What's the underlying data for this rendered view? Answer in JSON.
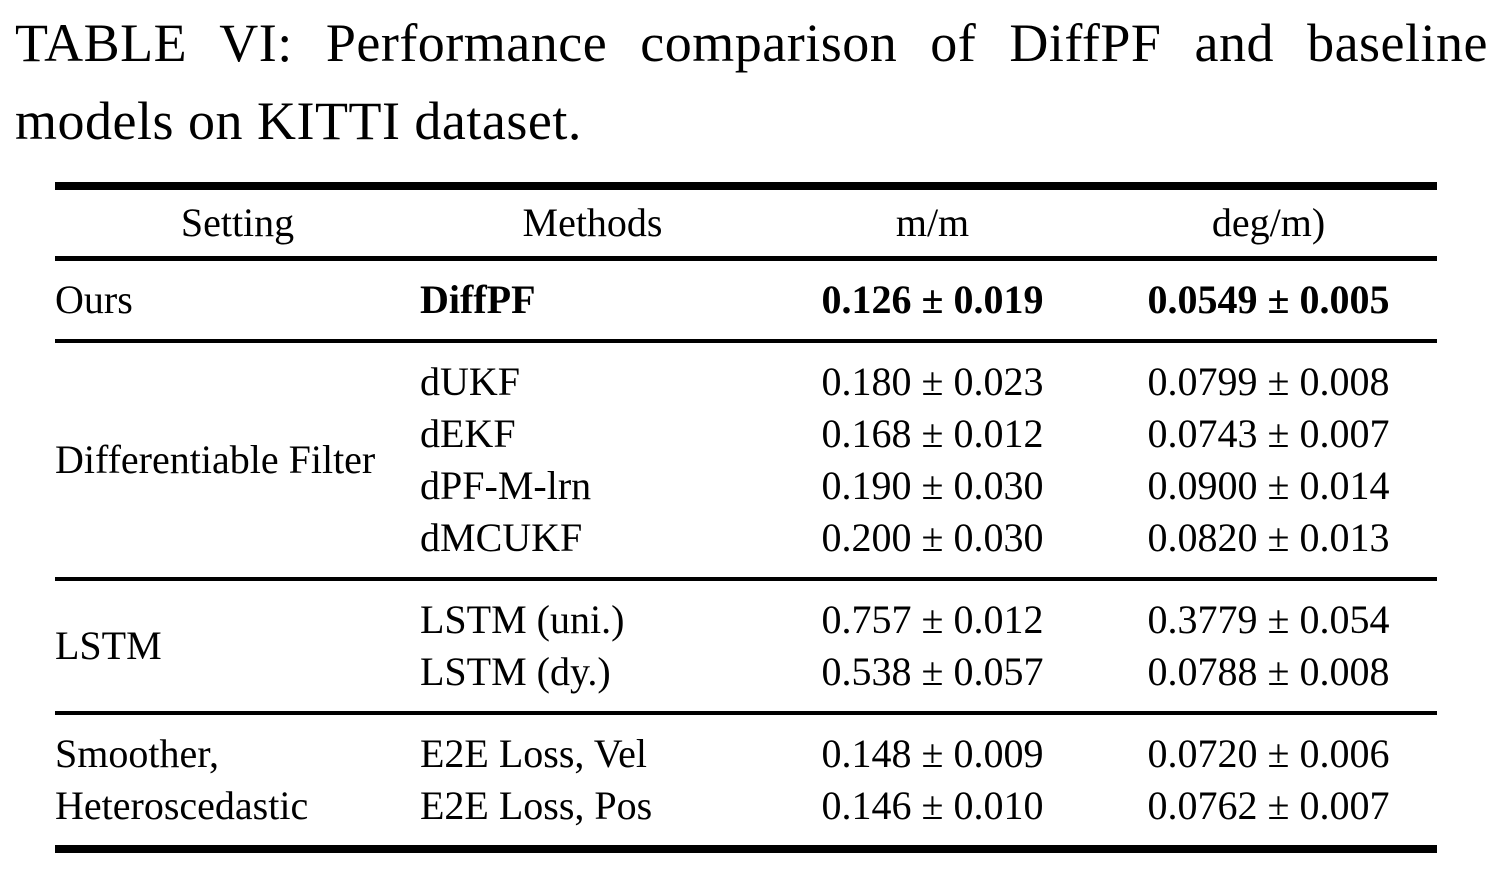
{
  "caption": "TABLE VI: Performance comparison of DiffPF and baseline models on KITTI dataset.",
  "table": {
    "columns": {
      "setting": "Setting",
      "methods": "Methods",
      "mm": "m/m",
      "degm": "deg/m)"
    },
    "groups": [
      {
        "setting": "Ours",
        "rows": [
          {
            "method": "DiffPF",
            "mm": "0.126 ± 0.019",
            "degm": "0.0549 ± 0.005"
          }
        ]
      },
      {
        "setting": "Differentiable Filter",
        "rows": [
          {
            "method": "dUKF",
            "mm": "0.180 ± 0.023",
            "degm": "0.0799 ± 0.008"
          },
          {
            "method": "dEKF",
            "mm": "0.168 ± 0.012",
            "degm": "0.0743 ± 0.007"
          },
          {
            "method": "dPF-M-lrn",
            "mm": "0.190 ± 0.030",
            "degm": "0.0900 ± 0.014"
          },
          {
            "method": "dMCUKF",
            "mm": "0.200 ± 0.030",
            "degm": "0.0820 ± 0.013"
          }
        ]
      },
      {
        "setting": "LSTM",
        "rows": [
          {
            "method": "LSTM (uni.)",
            "mm": "0.757 ± 0.012",
            "degm": "0.3779 ± 0.054"
          },
          {
            "method": "LSTM (dy.)",
            "mm": "0.538 ± 0.057",
            "degm": "0.0788 ± 0.008"
          }
        ]
      },
      {
        "setting": "Smoother, Heteroscedastic",
        "rows": [
          {
            "method": "E2E Loss, Vel",
            "mm": "0.148 ± 0.009",
            "degm": "0.0720 ± 0.006"
          },
          {
            "method": "E2E Loss, Pos",
            "mm": "0.146 ± 0.010",
            "degm": "0.0762 ± 0.007"
          }
        ]
      }
    ]
  }
}
